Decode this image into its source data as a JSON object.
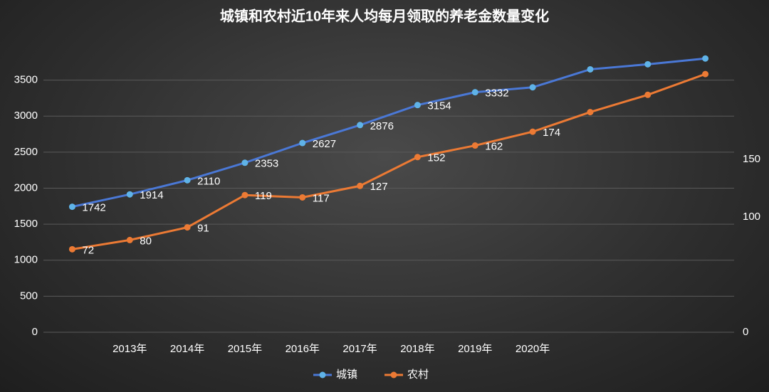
{
  "chart_data": {
    "type": "line",
    "title": "城镇和农村近10年来人均每月领取的养老金数量变化",
    "categories": [
      null,
      "2013年",
      "2014年",
      "2015年",
      "2016年",
      "2017年",
      "2018年",
      "2019年",
      "2020年",
      null,
      null,
      null
    ],
    "series": [
      {
        "name": "城镇",
        "color": "#4a78d6",
        "marker": "#5fb3e8",
        "values": [
          1742,
          1914,
          2110,
          2353,
          2627,
          2876,
          3154,
          3332,
          3400,
          3650,
          3720,
          3800
        ],
        "value_labels": [
          "1742",
          "1914",
          "2110",
          "2353",
          "2627",
          "2876",
          "3154",
          "3332",
          null,
          null,
          null,
          null
        ]
      },
      {
        "name": "农村",
        "color": "#ec7a34",
        "marker": "#ec7a34",
        "axis": "y2",
        "values": [
          72,
          80,
          91,
          119,
          117,
          127,
          152,
          162,
          174,
          191,
          206,
          224
        ],
        "value_labels": [
          "72",
          "80",
          "91",
          "119",
          "117",
          "127",
          "152",
          "162",
          "174",
          null,
          null,
          null
        ]
      }
    ],
    "ylim": [
      0,
      4000
    ],
    "yticks": [
      0,
      500,
      1000,
      1500,
      2000,
      2500,
      3000,
      3500
    ],
    "y2lim": [
      0,
      250
    ],
    "y2ticks": [
      0,
      100,
      150
    ],
    "grid": true,
    "legend": "bottom"
  }
}
